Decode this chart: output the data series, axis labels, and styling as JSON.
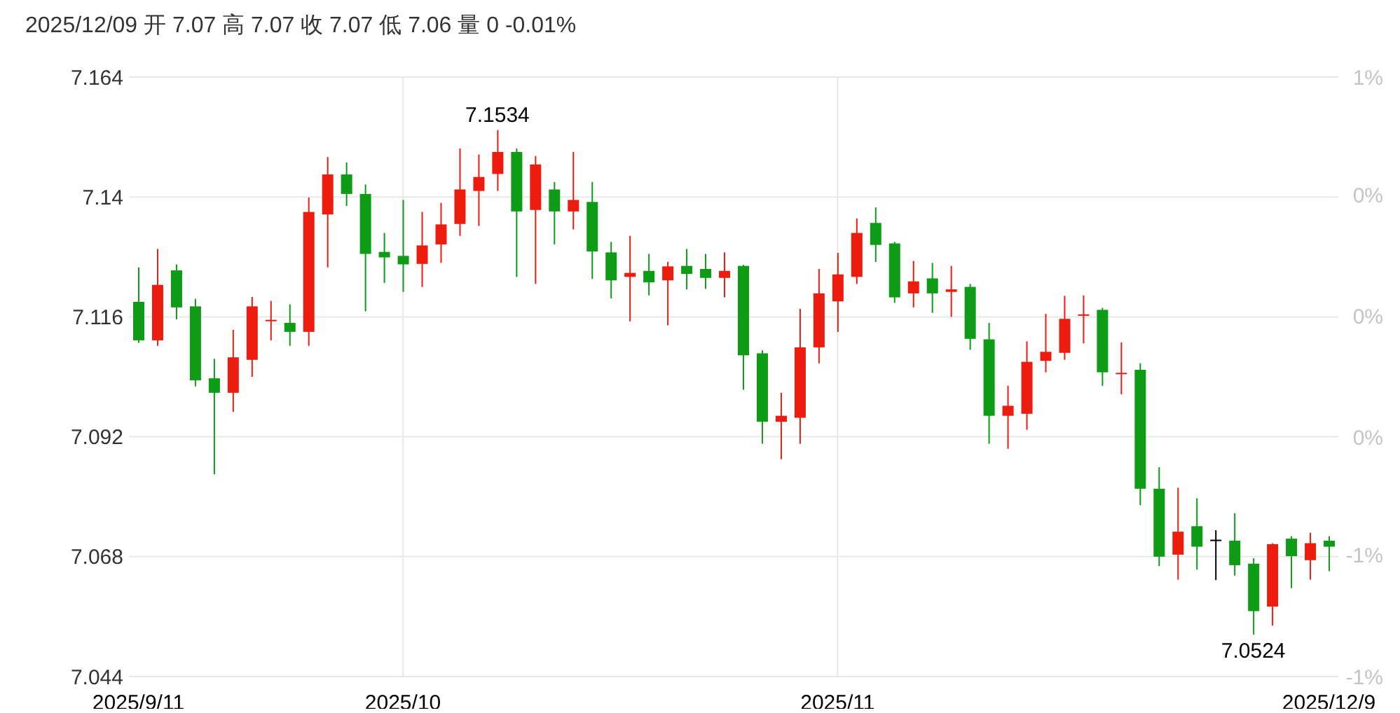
{
  "chart_data": {
    "type": "candlestick",
    "title": "2025/12/09 开 7.07 高 7.07 收 7.07 低 7.06 量 0 -0.01%",
    "categories": [
      "2025/9/11",
      null,
      null,
      null,
      null,
      null,
      null,
      null,
      null,
      null,
      null,
      null,
      null,
      null,
      "2025/10",
      null,
      null,
      null,
      null,
      null,
      null,
      null,
      null,
      null,
      null,
      null,
      null,
      null,
      null,
      null,
      null,
      null,
      null,
      null,
      null,
      null,
      null,
      "2025/11",
      null,
      null,
      null,
      null,
      null,
      null,
      null,
      null,
      null,
      null,
      null,
      null,
      null,
      null,
      null,
      null,
      null,
      null,
      null,
      null,
      null,
      null,
      null,
      null,
      null,
      "2025/12/9"
    ],
    "ohlc": [
      [
        7.119,
        7.1259,
        7.1108,
        7.1113
      ],
      [
        7.1113,
        7.1296,
        7.1102,
        7.1224
      ],
      [
        7.1253,
        7.1265,
        7.1155,
        7.1179
      ],
      [
        7.1181,
        7.1196,
        7.1021,
        7.1033
      ],
      [
        7.1037,
        7.1076,
        7.0845,
        7.1008
      ],
      [
        7.1008,
        7.1134,
        7.097,
        7.1079
      ],
      [
        7.1074,
        7.12,
        7.104,
        7.1181
      ],
      [
        7.1152,
        7.1192,
        7.1113,
        7.1154
      ],
      [
        7.1148,
        7.1185,
        7.1102,
        7.113
      ],
      [
        7.113,
        7.1399,
        7.1102,
        7.137
      ],
      [
        7.1365,
        7.148,
        7.1259,
        7.1445
      ],
      [
        7.1445,
        7.1469,
        7.1382,
        7.1406
      ],
      [
        7.1406,
        7.1425,
        7.1171,
        7.1286
      ],
      [
        7.129,
        7.1328,
        7.1228,
        7.1279
      ],
      [
        7.1282,
        7.1394,
        7.121,
        7.1265
      ],
      [
        7.1266,
        7.137,
        7.122,
        7.1303
      ],
      [
        7.1305,
        7.1388,
        7.1268,
        7.1345
      ],
      [
        7.1346,
        7.1497,
        7.1322,
        7.1415
      ],
      [
        7.1412,
        7.1485,
        7.1342,
        7.144
      ],
      [
        7.1446,
        7.1534,
        7.1412,
        7.149
      ],
      [
        7.149,
        7.1497,
        7.124,
        7.1371
      ],
      [
        7.1374,
        7.1482,
        7.1226,
        7.1465
      ],
      [
        7.1415,
        7.143,
        7.1305,
        7.1371
      ],
      [
        7.1371,
        7.149,
        7.1335,
        7.1394
      ],
      [
        7.139,
        7.143,
        7.1236,
        7.1291
      ],
      [
        7.1289,
        7.131,
        7.1197,
        7.1233
      ],
      [
        7.124,
        7.1322,
        7.1151,
        7.1248
      ],
      [
        7.1252,
        7.1286,
        7.1203,
        7.1229
      ],
      [
        7.1233,
        7.127,
        7.1143,
        7.1261
      ],
      [
        7.1262,
        7.1296,
        7.1215,
        7.1246
      ],
      [
        7.1256,
        7.1286,
        7.1216,
        7.1238
      ],
      [
        7.1238,
        7.1289,
        7.1199,
        7.1252
      ],
      [
        7.1262,
        7.1264,
        7.1014,
        7.1083
      ],
      [
        7.1087,
        7.1093,
        7.0906,
        7.095
      ],
      [
        7.095,
        7.1008,
        7.0875,
        7.0962
      ],
      [
        7.0958,
        7.1176,
        7.0906,
        7.1099
      ],
      [
        7.1099,
        7.1256,
        7.1067,
        7.1207
      ],
      [
        7.1191,
        7.1288,
        7.113,
        7.1245
      ],
      [
        7.124,
        7.1357,
        7.1226,
        7.1328
      ],
      [
        7.1348,
        7.1379,
        7.127,
        7.1304
      ],
      [
        7.1307,
        7.131,
        7.1188,
        7.1199
      ],
      [
        7.1207,
        7.1272,
        7.1179,
        7.1231
      ],
      [
        7.1237,
        7.1268,
        7.1168,
        7.1207
      ],
      [
        7.121,
        7.1262,
        7.116,
        7.1215
      ],
      [
        7.122,
        7.1226,
        7.1094,
        7.1116
      ],
      [
        7.1115,
        7.1148,
        7.0906,
        7.0962
      ],
      [
        7.0962,
        7.1022,
        7.0896,
        7.0982
      ],
      [
        7.0966,
        7.1111,
        7.0934,
        7.107
      ],
      [
        7.1072,
        7.1166,
        7.1049,
        7.109
      ],
      [
        7.1088,
        7.1202,
        7.1074,
        7.1156
      ],
      [
        7.1163,
        7.1203,
        7.1107,
        7.1165
      ],
      [
        7.1174,
        7.1178,
        7.1022,
        7.1049
      ],
      [
        7.1046,
        7.1109,
        7.1005,
        7.1048
      ],
      [
        7.1054,
        7.1067,
        7.0783,
        7.0816
      ],
      [
        7.0816,
        7.0859,
        7.0661,
        7.068
      ],
      [
        7.0684,
        7.0818,
        7.0634,
        7.073
      ],
      [
        7.0741,
        7.0797,
        7.0654,
        7.07
      ],
      [
        7.0714,
        7.0733,
        7.0633,
        7.0714
      ],
      [
        7.0712,
        7.0767,
        7.0642,
        7.0663
      ],
      [
        7.0666,
        7.0677,
        7.0524,
        7.0571
      ],
      [
        7.058,
        7.0707,
        7.0542,
        7.0705
      ],
      [
        7.0716,
        7.0721,
        7.0617,
        7.0681
      ],
      [
        7.0673,
        7.0728,
        7.0634,
        7.0707
      ],
      [
        7.0712,
        7.0721,
        7.0651,
        7.07
      ]
    ],
    "colors": [
      "#0e9b16",
      "#ec1c0e",
      "#0e9b16",
      "#0e9b16",
      "#0e9b16",
      "#ec1c0e",
      "#ec1c0e",
      "#ec1c0e",
      "#0e9b16",
      "#ec1c0e",
      "#ec1c0e",
      "#0e9b16",
      "#0e9b16",
      "#0e9b16",
      "#0e9b16",
      "#ec1c0e",
      "#ec1c0e",
      "#ec1c0e",
      "#ec1c0e",
      "#ec1c0e",
      "#0e9b16",
      "#ec1c0e",
      "#0e9b16",
      "#ec1c0e",
      "#0e9b16",
      "#0e9b16",
      "#ec1c0e",
      "#0e9b16",
      "#ec1c0e",
      "#0e9b16",
      "#0e9b16",
      "#ec1c0e",
      "#0e9b16",
      "#0e9b16",
      "#ec1c0e",
      "#ec1c0e",
      "#ec1c0e",
      "#ec1c0e",
      "#ec1c0e",
      "#0e9b16",
      "#0e9b16",
      "#ec1c0e",
      "#0e9b16",
      "#ec1c0e",
      "#0e9b16",
      "#0e9b16",
      "#ec1c0e",
      "#ec1c0e",
      "#ec1c0e",
      "#ec1c0e",
      "#ec1c0e",
      "#0e9b16",
      "#ec1c0e",
      "#0e9b16",
      "#0e9b16",
      "#ec1c0e",
      "#0e9b16",
      "#000000",
      "#0e9b16",
      "#0e9b16",
      "#ec1c0e",
      "#0e9b16",
      "#ec1c0e",
      "#0e9b16"
    ],
    "ylim": [
      7.044,
      7.164
    ],
    "yticks": [
      7.044,
      7.068,
      7.092,
      7.116,
      7.14,
      7.164
    ],
    "y2lim": [
      -1.01,
      0.67
    ],
    "y2ticks": [
      {
        "value": -1.01,
        "label": "-1%"
      },
      {
        "value": -0.67,
        "label": "-1%"
      },
      {
        "value": -0.34,
        "label": "0%"
      },
      {
        "value": 0,
        "label": "0%"
      },
      {
        "value": 0.34,
        "label": "0%"
      },
      {
        "value": 0.67,
        "label": "1%"
      }
    ],
    "grid": true,
    "annotations": [
      {
        "text": "7.1534",
        "y": 7.1534
      },
      {
        "text": "7.0524",
        "y": 7.0524
      }
    ]
  }
}
